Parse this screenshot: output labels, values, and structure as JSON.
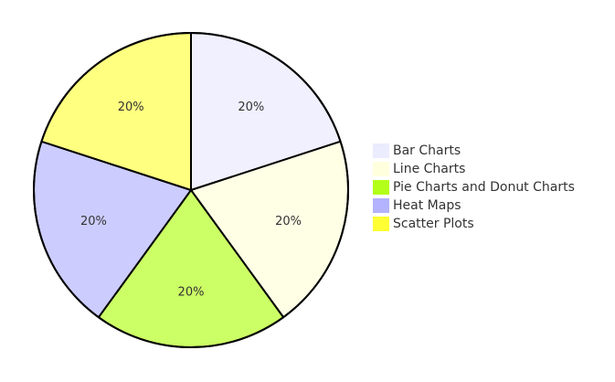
{
  "chart_data": {
    "type": "pie",
    "legend_position": "right",
    "slices": [
      {
        "label": "Bar Charts",
        "value": 20,
        "percent_label": "20%",
        "color": "#f0f0ff"
      },
      {
        "label": "Line Charts",
        "value": 20,
        "percent_label": "20%",
        "color": "#ffffe6"
      },
      {
        "label": "Pie Charts and Donut Charts",
        "value": 20,
        "percent_label": "20%",
        "color": "#ccff66"
      },
      {
        "label": "Heat Maps",
        "value": 20,
        "percent_label": "20%",
        "color": "#ccccff"
      },
      {
        "label": "Scatter Plots",
        "value": 20,
        "percent_label": "20%",
        "color": "#ffff80"
      }
    ],
    "legend_swatch_colors": [
      "#ececff",
      "#ffffde",
      "#b3ff1a",
      "#b3b3ff",
      "#ffff33"
    ]
  }
}
